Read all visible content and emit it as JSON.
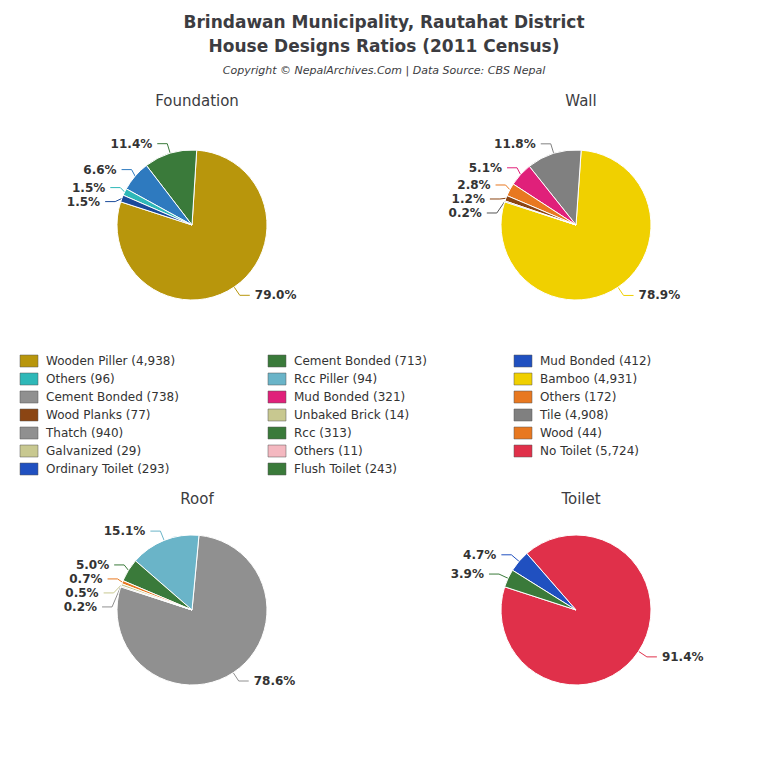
{
  "title": "Brindawan Municipality, Rautahat District",
  "subtitle": "House Designs Ratios (2011 Census)",
  "annotations": [
    "Copyright © NepalArchives.Com | Data Source: CBS Nepal"
  ],
  "chart_data": [
    {
      "type": "pie",
      "title": "Foundation",
      "values": [
        79.0,
        11.4,
        6.6,
        1.5,
        1.5
      ],
      "value_labels": [
        "79.0%",
        "11.4%",
        "6.6%",
        "1.5%",
        "1.5%"
      ],
      "colors": [
        "#b8960c",
        "#3a7a3a",
        "#2e7abf",
        "#2eb8b8",
        "#1a4a9a"
      ],
      "data_labels": true
    },
    {
      "type": "pie",
      "title": "Wall",
      "values": [
        78.9,
        11.8,
        5.1,
        2.8,
        1.2,
        0.2
      ],
      "value_labels": [
        "78.9%",
        "11.8%",
        "5.1%",
        "2.8%",
        "1.2%",
        "0.2%"
      ],
      "colors": [
        "#f0d000",
        "#808080",
        "#e0207a",
        "#e87820",
        "#8b4513",
        "#555555"
      ],
      "data_labels": true
    },
    {
      "type": "pie",
      "title": "Roof",
      "values": [
        78.6,
        15.1,
        5.0,
        0.7,
        0.5,
        0.2
      ],
      "value_labels": [
        "78.6%",
        "15.1%",
        "5.0%",
        "0.7%",
        "0.5%",
        "0.2%"
      ],
      "colors": [
        "#909090",
        "#6ab4c8",
        "#3a7a3a",
        "#e87820",
        "#c8c890",
        "#909090"
      ],
      "data_labels": true
    },
    {
      "type": "pie",
      "title": "Toilet",
      "values": [
        91.4,
        4.7,
        3.9
      ],
      "value_labels": [
        "91.4%",
        "4.7%",
        "3.9%"
      ],
      "colors": [
        "#e0304a",
        "#2050c0",
        "#3a7a3a"
      ],
      "data_labels": true
    },
    {
      "type": "legend",
      "series": [
        {
          "name": "Wooden Piller (4,938)",
          "color": "#b8960c"
        },
        {
          "name": "Others (96)",
          "color": "#2eb8b8"
        },
        {
          "name": "Cement Bonded (738)",
          "color": "#909090"
        },
        {
          "name": "Wood Planks (77)",
          "color": "#8b4513"
        },
        {
          "name": "Thatch (940)",
          "color": "#909090"
        },
        {
          "name": "Galvanized (29)",
          "color": "#c8c890"
        },
        {
          "name": "Ordinary Toilet (293)",
          "color": "#2050c0"
        },
        {
          "name": "Cement Bonded (713)",
          "color": "#3a7a3a"
        },
        {
          "name": "Rcc Piller (94)",
          "color": "#6ab4c8"
        },
        {
          "name": "Mud Bonded (321)",
          "color": "#e0207a"
        },
        {
          "name": "Unbaked Brick (14)",
          "color": "#c8c890"
        },
        {
          "name": "Rcc (313)",
          "color": "#3a7a3a"
        },
        {
          "name": "Others (11)",
          "color": "#f4b8c0"
        },
        {
          "name": "Flush Toilet (243)",
          "color": "#3a7a3a"
        },
        {
          "name": "Mud Bonded (412)",
          "color": "#2050c0"
        },
        {
          "name": "Bamboo (4,931)",
          "color": "#f0d000"
        },
        {
          "name": "Others (172)",
          "color": "#e87820"
        },
        {
          "name": "Tile (4,908)",
          "color": "#808080"
        },
        {
          "name": "Wood (44)",
          "color": "#e87820"
        },
        {
          "name": "No Toilet (5,724)",
          "color": "#e0304a"
        }
      ]
    }
  ]
}
